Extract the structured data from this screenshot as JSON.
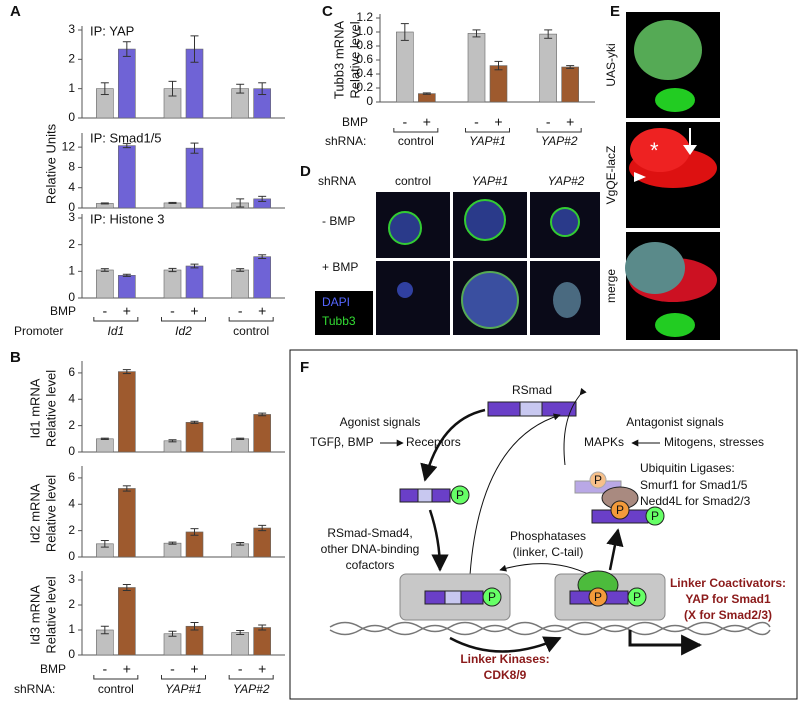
{
  "panel_labels": [
    "A",
    "B",
    "C",
    "D",
    "E",
    "F"
  ],
  "chart_data": [
    {
      "type": "bar",
      "subtitle": "IP: YAP",
      "categories": [
        null,
        null,
        null
      ],
      "series": [
        {
          "color": "#c0c0c0",
          "values": [
            1.0,
            1.0,
            1.0
          ],
          "errors": [
            0.2,
            0.25,
            0.15
          ]
        },
        {
          "color": "#6f63d6",
          "values": [
            2.35,
            2.35,
            1.0
          ],
          "errors": [
            0.25,
            0.45,
            0.2
          ]
        }
      ],
      "ylim": [
        0,
        3
      ],
      "yticks": [
        0,
        1,
        2,
        3
      ]
    },
    {
      "type": "bar",
      "subtitle": "IP: Smad1/5",
      "ylabel": "Relative Units",
      "categories": [
        null,
        null,
        null
      ],
      "series": [
        {
          "color": "#c0c0c0",
          "values": [
            0.9,
            1.0,
            1.0
          ],
          "errors": [
            0.1,
            0.1,
            0.8
          ]
        },
        {
          "color": "#6f63d6",
          "values": [
            12.3,
            11.8,
            1.8
          ],
          "errors": [
            0.4,
            1.0,
            0.5
          ]
        }
      ],
      "ylim": [
        0,
        14
      ],
      "yticks": [
        0,
        4,
        8,
        12
      ]
    },
    {
      "type": "bar",
      "subtitle": "IP: Histone 3",
      "categories": [
        "Id1",
        "Id2",
        "control"
      ],
      "category_label": "Promoter",
      "group_label": "BMP",
      "series": [
        {
          "name": "-",
          "color": "#c0c0c0",
          "values": [
            1.05,
            1.05,
            1.05
          ],
          "errors": [
            0.05,
            0.06,
            0.05
          ]
        },
        {
          "name": "+",
          "color": "#6f63d6",
          "values": [
            0.85,
            1.2,
            1.55
          ],
          "errors": [
            0.04,
            0.07,
            0.07
          ]
        }
      ],
      "ylim": [
        0,
        3
      ],
      "yticks": [
        0,
        1,
        2,
        3
      ]
    },
    {
      "type": "bar",
      "ylabel": "Id1 mRNA",
      "ylabel2": "Relative level",
      "categories": [
        null,
        null,
        null
      ],
      "series": [
        {
          "color": "#c0c0c0",
          "values": [
            1.0,
            0.85,
            1.0
          ],
          "errors": [
            0.05,
            0.08,
            0.05
          ]
        },
        {
          "color": "#9e5a2e",
          "values": [
            6.1,
            2.25,
            2.85
          ],
          "errors": [
            0.15,
            0.08,
            0.1
          ]
        }
      ],
      "ylim": [
        0,
        6.6
      ],
      "yticks": [
        0,
        2,
        4,
        6
      ]
    },
    {
      "type": "bar",
      "ylabel": "Id2 mRNA",
      "ylabel2": "Relative level",
      "categories": [
        null,
        null,
        null
      ],
      "series": [
        {
          "color": "#c0c0c0",
          "values": [
            1.0,
            1.05,
            1.0
          ],
          "errors": [
            0.25,
            0.08,
            0.1
          ]
        },
        {
          "color": "#9e5a2e",
          "values": [
            5.2,
            1.9,
            2.2
          ],
          "errors": [
            0.2,
            0.25,
            0.2
          ]
        }
      ],
      "ylim": [
        0,
        6.6
      ],
      "yticks": [
        0,
        2,
        4,
        6
      ]
    },
    {
      "type": "bar",
      "ylabel": "Id3 mRNA",
      "ylabel2": "Relative level",
      "categories": [
        "control",
        "YAP#1",
        "YAP#2"
      ],
      "category_label": "shRNA:",
      "group_label": "BMP",
      "series": [
        {
          "name": "-",
          "color": "#c0c0c0",
          "values": [
            1.0,
            0.85,
            0.9
          ],
          "errors": [
            0.15,
            0.1,
            0.08
          ]
        },
        {
          "name": "+",
          "color": "#9e5a2e",
          "values": [
            2.7,
            1.15,
            1.1
          ],
          "errors": [
            0.12,
            0.15,
            0.1
          ]
        }
      ],
      "ylim": [
        0,
        3.2
      ],
      "yticks": [
        0,
        1,
        2,
        3
      ]
    },
    {
      "type": "bar",
      "ylabel": "Tubb3 mRNA",
      "ylabel2": "Relative level",
      "categories": [
        "control",
        "YAP#1",
        "YAP#2"
      ],
      "category_label": "shRNA:",
      "group_label": "BMP",
      "series": [
        {
          "name": "-",
          "color": "#c0c0c0",
          "values": [
            1.0,
            0.98,
            0.97
          ],
          "errors": [
            0.12,
            0.05,
            0.06
          ]
        },
        {
          "name": "+",
          "color": "#9e5a2e",
          "values": [
            0.12,
            0.52,
            0.5
          ],
          "errors": [
            0.01,
            0.06,
            0.02
          ]
        }
      ],
      "ylim": [
        0,
        1.2
      ],
      "yticks": [
        0,
        0.2,
        0.4,
        0.6,
        0.8,
        {
          "value": 1.0,
          "label": "1.0"
        },
        1.2
      ]
    }
  ],
  "figure_d": {
    "row_header": "shRNA",
    "columns": [
      "control",
      "YAP#1",
      "YAP#2"
    ],
    "rows": [
      "- BMP",
      "+ BMP"
    ],
    "stains": [
      "DAPI",
      "Tubb3"
    ]
  },
  "figure_e": {
    "rows": [
      "UAS-yki",
      "VgQE-lacZ",
      "merge"
    ],
    "marker": "*"
  },
  "diagram_f": {
    "rsmad": "RSmad",
    "agonist": "Agonist signals",
    "agonist_ligands": "TGFβ, BMP",
    "receptors": "Receptors",
    "antagonist": "Antagonist signals",
    "mapks": "MAPKs",
    "mitogens": "Mitogens, stresses",
    "ubiquitin": [
      "Ubiquitin Ligases:",
      "Smurf1 for Smad1/5",
      "Nedd4L for Smad2/3"
    ],
    "cofactors": [
      "RSmad-Smad4,",
      "other DNA-binding",
      "cofactors"
    ],
    "phosphatases": [
      "Phosphatases",
      "(linker, C-tail)"
    ],
    "coactivators": [
      "Linker Coactivators:",
      "YAP for Smad1",
      "(X for Smad2/3)"
    ],
    "kinases": [
      "Linker Kinases:",
      "CDK8/9"
    ],
    "phospho": "P"
  }
}
